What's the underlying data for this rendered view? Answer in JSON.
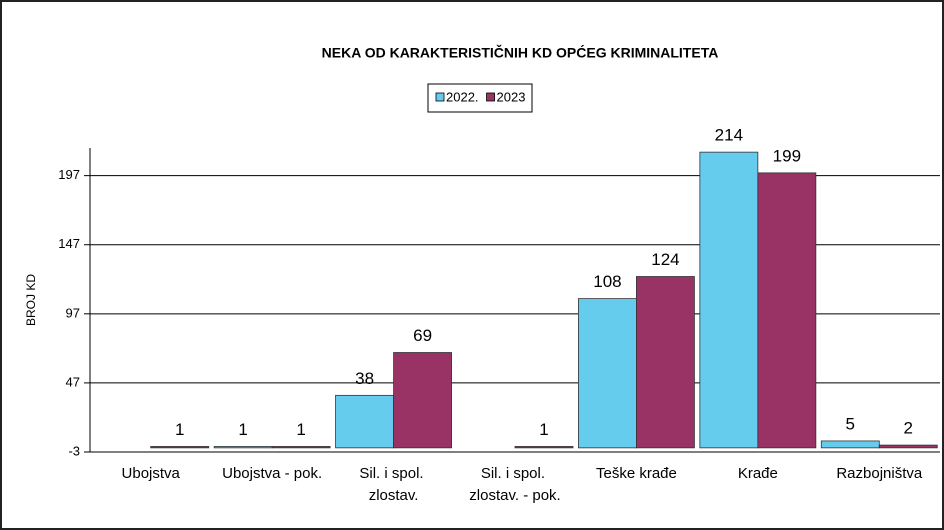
{
  "chart_data": {
    "type": "bar",
    "title": "NEKA OD KARAKTERISTIČNIH  KD OPĆEG KRIMINALITETA",
    "y_label": "BROJ KD",
    "categories": [
      "Ubojstva",
      "Ubojstva - pok.",
      "Sil. i spol. zlostav.",
      "Sil. i spol. zlostav. - pok.",
      "Teške krađe",
      "Krađe",
      "Razbojništva"
    ],
    "series": [
      {
        "name": "2022.",
        "color": "#66ccee",
        "values": [
          null,
          1,
          38,
          null,
          108,
          214,
          5
        ]
      },
      {
        "name": "2023",
        "color": "#993366",
        "values": [
          1,
          1,
          69,
          1,
          124,
          199,
          2
        ]
      }
    ],
    "ylim": [
      -3,
      217
    ],
    "yticks": [
      -3,
      47,
      97,
      147,
      197
    ],
    "grid": true,
    "legend": "top"
  }
}
